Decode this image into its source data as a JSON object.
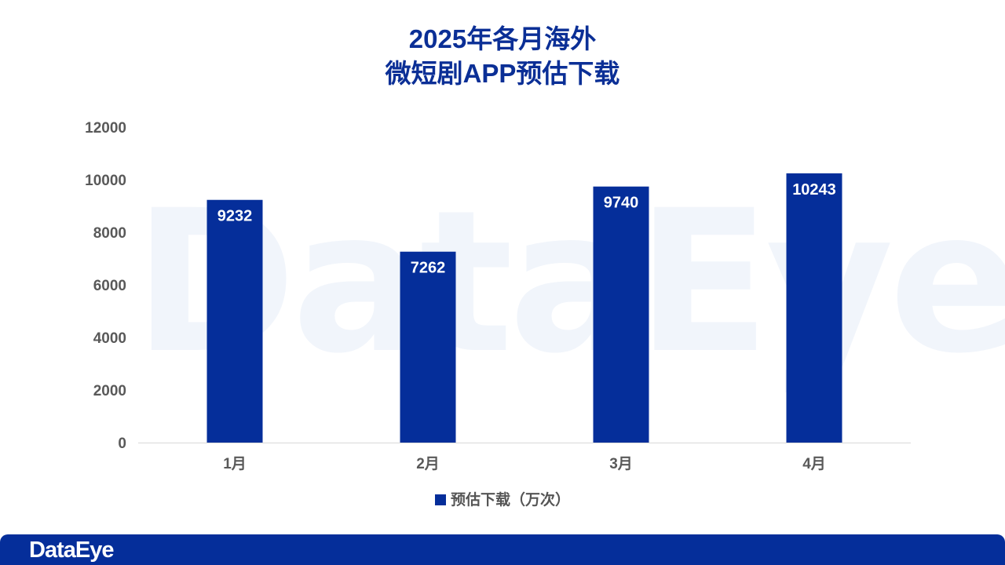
{
  "title": {
    "line1": "2025年各月海外",
    "line2": "微短剧APP预估下载"
  },
  "watermark_text": "DataEye",
  "footer": {
    "logo_text": "DataEye",
    "bar_color": "#052e9a"
  },
  "colors": {
    "bar": "#052e9a",
    "title": "#0b2f96",
    "axis_text": "#595959"
  },
  "chart_data": {
    "type": "bar",
    "categories": [
      "1月",
      "2月",
      "3月",
      "4月"
    ],
    "series": [
      {
        "name": "预估下载（万次）",
        "values": [
          9232,
          7262,
          9740,
          10243
        ]
      }
    ],
    "title": "2025年各月海外微短剧APP预估下载",
    "ylim": [
      0,
      12000
    ],
    "yticks": [
      0,
      2000,
      4000,
      6000,
      8000,
      10000,
      12000
    ],
    "ytick_labels": [
      "0",
      "2000",
      "4000",
      "6000",
      "8000",
      "10000",
      "12000"
    ],
    "grid": false,
    "legend": "bottom",
    "data_labels": "inside-top"
  }
}
